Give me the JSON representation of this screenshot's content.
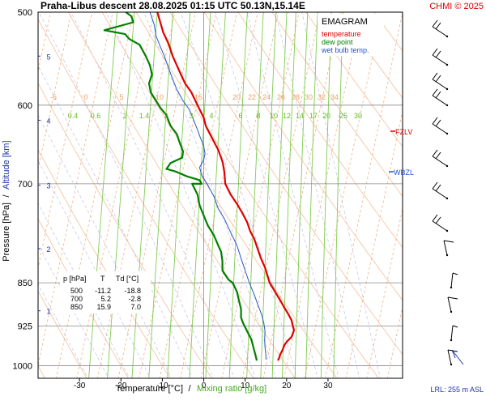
{
  "header": {
    "title": "Praha-Libus   descent   28.08.2025 01:15 UTC  50.13N,15.14E",
    "credit": "CHMI © 2025"
  },
  "colors": {
    "temperature": "#e00000",
    "dew_point": "#008000",
    "wet_bulb": "#2255cc",
    "dry_adiabat": "#f5c6a5",
    "moist_adiabat": "#c7c7ee",
    "mixing_ratio": "#80cc50",
    "isotherm": "#f0b080",
    "axis_blue": "#2233aa",
    "credit_red": "#dd0000"
  },
  "legend": {
    "title": "EMAGRAM",
    "temperature": "temperature",
    "dew_point": "dew point",
    "wet_bulb": "wet bulb temp."
  },
  "table": {
    "headers": [
      "p [hPa]",
      "T",
      "Td [°C]"
    ],
    "rows": [
      [
        "500",
        "-11.2",
        "-18.8"
      ],
      [
        "700",
        "5.2",
        "-2.8"
      ],
      [
        "850",
        "15.9",
        "7.0"
      ]
    ]
  },
  "markers": {
    "fzlv": "FZLV",
    "wbzl": "WBZL"
  },
  "lrl": "LRL: 255 m ASL",
  "chart_data": {
    "type": "line",
    "title": "EMAGRAM",
    "xlabel_temperature": "Temperature [°C]",
    "xlabel_separator": "/",
    "xlabel_mixing": "Mixing ratio [g/kg]",
    "ylabel_pressure": "Pressure [hPa]",
    "ylabel_separator": "/",
    "ylabel_altitude": "Altitude [km]",
    "xlim": [
      -40,
      48
    ],
    "ylim": [
      500,
      1025
    ],
    "x_ticks": [
      "-30",
      "-20",
      "-10",
      "0",
      "10",
      "20",
      "30"
    ],
    "x_tick_values": [
      -30,
      -20,
      -10,
      0,
      10,
      20,
      30
    ],
    "p_ticks": [
      "500",
      "600",
      "700",
      "850",
      "925",
      "1000"
    ],
    "p_tick_values": [
      500,
      600,
      700,
      850,
      925,
      1000
    ],
    "alt_ticks": [
      "1",
      "2",
      "3",
      "4",
      "5"
    ],
    "alt_tick_pressures": [
      898,
      795,
      702,
      618,
      545
    ],
    "isotherm_labels": [
      "-5",
      "0",
      "5",
      "10",
      "15",
      "20",
      "22",
      "24",
      "26",
      "28",
      "30",
      "32",
      "34"
    ],
    "mixing_ratio_labels": [
      "0.4",
      "0.6",
      "1",
      "1.4",
      "2",
      "3",
      "4",
      "6",
      "8",
      "10",
      "12",
      "14",
      "17",
      "20",
      "25",
      "30"
    ],
    "series": [
      {
        "name": "temperature",
        "points": [
          [
            -11.2,
            500
          ],
          [
            -10.5,
            510
          ],
          [
            -9.8,
            520
          ],
          [
            -8.5,
            532
          ],
          [
            -7.5,
            545
          ],
          [
            -6.5,
            555
          ],
          [
            -5.5,
            565
          ],
          [
            -4.5,
            575
          ],
          [
            -3,
            585
          ],
          [
            -2,
            595
          ],
          [
            -1,
            605
          ],
          [
            0,
            615
          ],
          [
            0.5,
            625
          ],
          [
            1.5,
            635
          ],
          [
            2.5,
            645
          ],
          [
            3.5,
            655
          ],
          [
            4.2,
            665
          ],
          [
            4.6,
            672
          ],
          [
            5,
            685
          ],
          [
            5.2,
            700
          ],
          [
            6.5,
            715
          ],
          [
            8,
            728
          ],
          [
            9.2,
            740
          ],
          [
            10.5,
            755
          ],
          [
            11.2,
            768
          ],
          [
            12.2,
            780
          ],
          [
            13,
            795
          ],
          [
            13.8,
            810
          ],
          [
            14.8,
            825
          ],
          [
            15.9,
            850
          ],
          [
            17.2,
            865
          ],
          [
            18.5,
            880
          ],
          [
            19.5,
            893
          ],
          [
            20.5,
            905
          ],
          [
            21.2,
            915
          ],
          [
            21.5,
            925
          ],
          [
            21.8,
            933
          ],
          [
            21.2,
            945
          ],
          [
            20.2,
            953
          ],
          [
            19.5,
            960
          ],
          [
            19,
            970
          ],
          [
            18.5,
            978
          ],
          [
            18.2,
            985
          ],
          [
            17.9,
            990
          ]
        ]
      },
      {
        "name": "dew point",
        "points": [
          [
            -18.8,
            500
          ],
          [
            -17.5,
            504
          ],
          [
            -17,
            510
          ],
          [
            -24,
            518
          ],
          [
            -19,
            522
          ],
          [
            -18,
            527
          ],
          [
            -15.5,
            533
          ],
          [
            -14,
            545
          ],
          [
            -13,
            555
          ],
          [
            -12.5,
            565
          ],
          [
            -13.2,
            575
          ],
          [
            -12.8,
            585
          ],
          [
            -11.5,
            595
          ],
          [
            -10.5,
            603
          ],
          [
            -9,
            612
          ],
          [
            -8,
            625
          ],
          [
            -6.5,
            635
          ],
          [
            -6,
            643
          ],
          [
            -5.5,
            650
          ],
          [
            -5,
            657
          ],
          [
            -5.2,
            665
          ],
          [
            -8,
            672
          ],
          [
            -9,
            680
          ],
          [
            -7,
            683
          ],
          [
            -4,
            690
          ],
          [
            -1,
            695
          ],
          [
            -0.5,
            700
          ],
          [
            -2.8,
            700
          ],
          [
            -1.5,
            715
          ],
          [
            -1,
            730
          ],
          [
            0,
            745
          ],
          [
            1,
            760
          ],
          [
            2.5,
            775
          ],
          [
            3.5,
            790
          ],
          [
            4.2,
            800
          ],
          [
            4.5,
            815
          ],
          [
            4.5,
            830
          ],
          [
            6,
            845
          ],
          [
            7,
            850
          ],
          [
            8,
            865
          ],
          [
            8.5,
            880
          ],
          [
            9,
            895
          ],
          [
            9,
            910
          ],
          [
            9.5,
            920
          ],
          [
            10.5,
            935
          ],
          [
            11.5,
            950
          ],
          [
            12,
            965
          ],
          [
            12.5,
            980
          ],
          [
            12.8,
            990
          ]
        ]
      },
      {
        "name": "wet bulb temp.",
        "points": [
          [
            -13,
            500
          ],
          [
            -12,
            512
          ],
          [
            -11.5,
            524
          ],
          [
            -10.5,
            535
          ],
          [
            -9.5,
            545
          ],
          [
            -8.5,
            558
          ],
          [
            -7.5,
            570
          ],
          [
            -6.5,
            582
          ],
          [
            -5,
            595
          ],
          [
            -3.5,
            605
          ],
          [
            -2.5,
            617
          ],
          [
            -1.5,
            630
          ],
          [
            -0.8,
            640
          ],
          [
            0,
            650
          ],
          [
            0.3,
            660
          ],
          [
            0,
            668
          ],
          [
            -1,
            678
          ],
          [
            -0.5,
            688
          ],
          [
            0.8,
            700
          ],
          [
            2.5,
            718
          ],
          [
            3.5,
            735
          ],
          [
            5,
            750
          ],
          [
            6.5,
            770
          ],
          [
            8,
            790
          ],
          [
            9,
            810
          ],
          [
            10,
            830
          ],
          [
            11,
            850
          ],
          [
            12.2,
            870
          ],
          [
            13.2,
            890
          ],
          [
            14,
            905
          ],
          [
            14.5,
            920
          ],
          [
            14.8,
            935
          ],
          [
            14.7,
            950
          ],
          [
            14.8,
            965
          ],
          [
            15,
            980
          ],
          [
            15,
            988
          ]
        ]
      }
    ]
  }
}
